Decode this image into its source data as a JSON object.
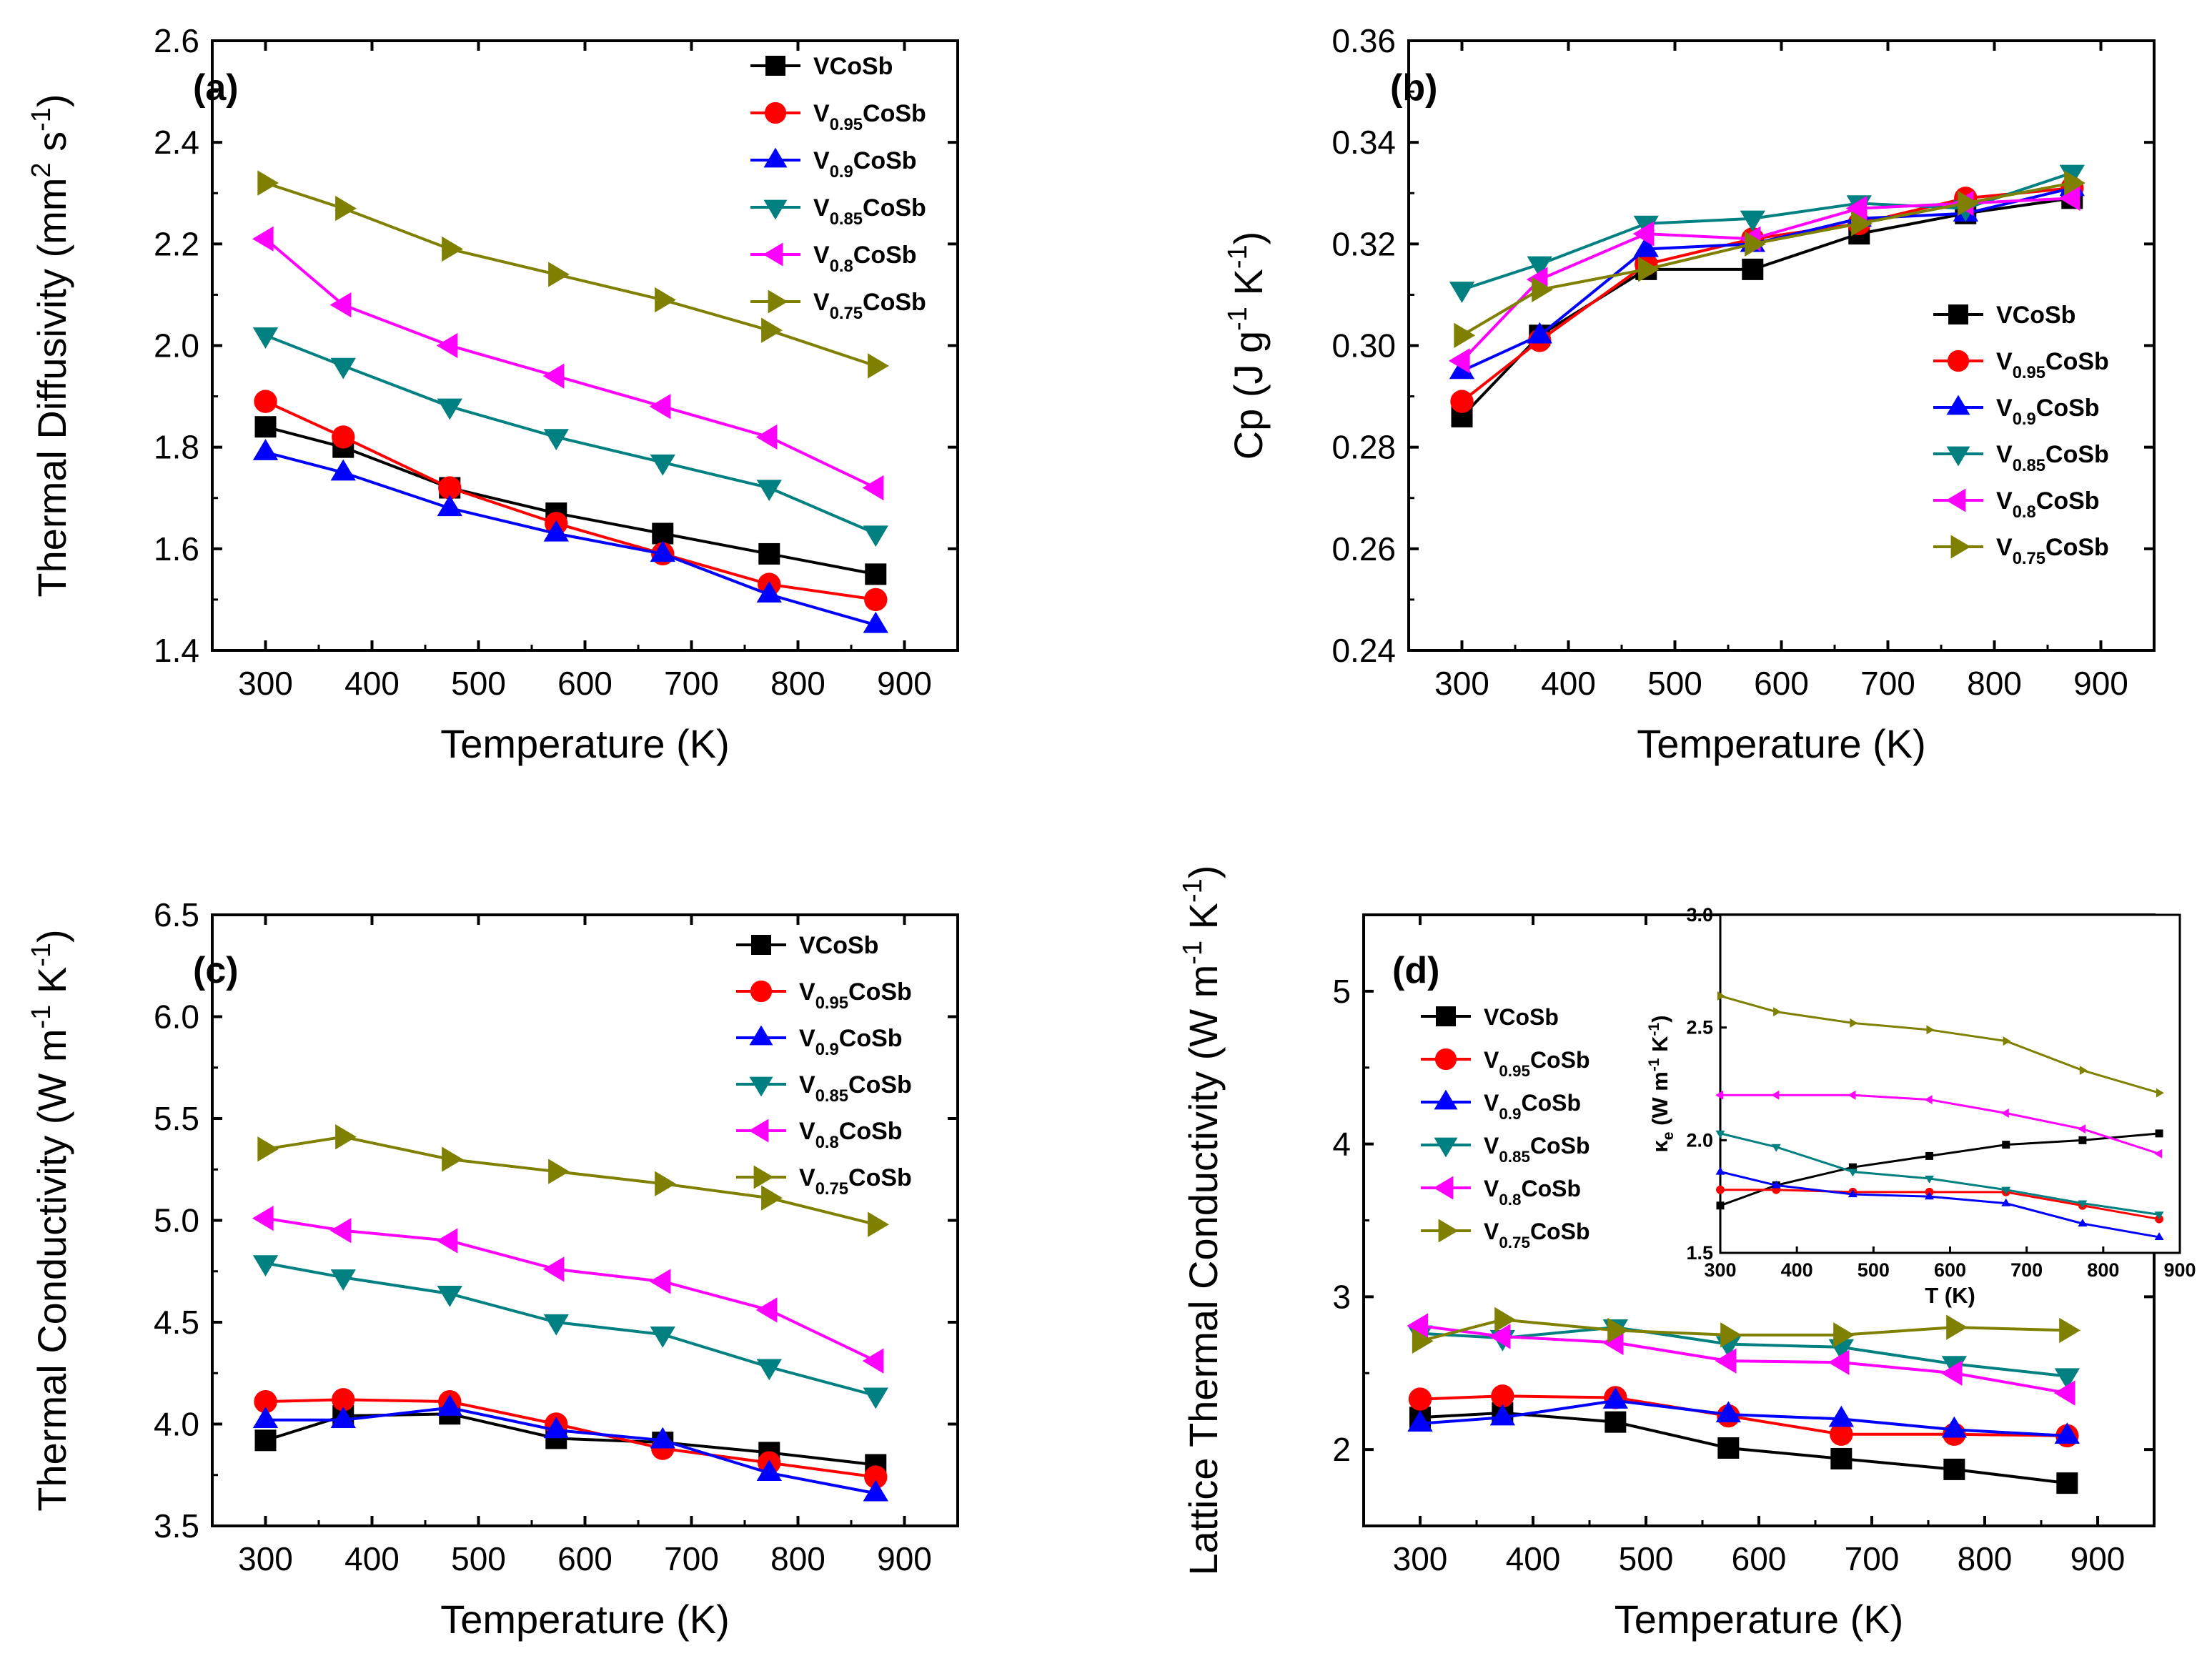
{
  "chart_data": [
    {
      "id": "a",
      "type": "line",
      "panel_label": "(a)",
      "xlabel": "Temperature (K)",
      "ylabel": {
        "base": "Thermal Diffusivity (mm",
        "sup1": "2",
        "mid": " s",
        "sup2": "-1",
        "end": ")"
      },
      "xlim": [
        250,
        950
      ],
      "ylim": [
        1.4,
        2.6
      ],
      "xticks": [
        "300",
        "400",
        "500",
        "600",
        "700",
        "800",
        "900"
      ],
      "yticks": [
        "1.4",
        "1.6",
        "1.8",
        "2.0",
        "2.2",
        "2.4",
        "2.6"
      ],
      "legend_position": "top-right",
      "x": [
        300,
        373,
        473,
        573,
        673,
        773,
        873
      ],
      "series": [
        {
          "name": "VCoSb",
          "values": [
            1.84,
            1.8,
            1.72,
            1.67,
            1.63,
            1.59,
            1.55
          ]
        },
        {
          "name": "V0.95CoSb",
          "values": [
            1.89,
            1.82,
            1.72,
            1.65,
            1.59,
            1.53,
            1.5
          ]
        },
        {
          "name": "V0.9CoSb",
          "values": [
            1.79,
            1.75,
            1.68,
            1.63,
            1.59,
            1.51,
            1.45
          ]
        },
        {
          "name": "V0.85CoSb",
          "values": [
            2.02,
            1.96,
            1.88,
            1.82,
            1.77,
            1.72,
            1.63
          ]
        },
        {
          "name": "V0.8CoSb",
          "values": [
            2.21,
            2.08,
            2.0,
            1.94,
            1.88,
            1.82,
            1.72
          ]
        },
        {
          "name": "V0.75CoSb",
          "values": [
            2.32,
            2.27,
            2.19,
            2.14,
            2.09,
            2.03,
            1.96
          ]
        }
      ]
    },
    {
      "id": "b",
      "type": "line",
      "panel_label": "(b)",
      "xlabel": "Temperature (K)",
      "ylabel": {
        "base": "Cp (J g",
        "sup1": "-1",
        "mid": " K",
        "sup2": "-1",
        "end": ")"
      },
      "xlim": [
        250,
        950
      ],
      "ylim": [
        0.24,
        0.36
      ],
      "xticks": [
        "300",
        "400",
        "500",
        "600",
        "700",
        "800",
        "900"
      ],
      "yticks": [
        "0.24",
        "0.26",
        "0.28",
        "0.30",
        "0.32",
        "0.34",
        "0.36"
      ],
      "legend_position": "center-right",
      "x": [
        300,
        373,
        473,
        573,
        673,
        773,
        873
      ],
      "series": [
        {
          "name": "VCoSb",
          "values": [
            0.286,
            0.302,
            0.315,
            0.315,
            0.322,
            0.326,
            0.329
          ]
        },
        {
          "name": "V0.95CoSb",
          "values": [
            0.289,
            0.301,
            0.316,
            0.321,
            0.324,
            0.329,
            0.331
          ]
        },
        {
          "name": "V0.9CoSb",
          "values": [
            0.295,
            0.302,
            0.319,
            0.32,
            0.325,
            0.326,
            0.331
          ]
        },
        {
          "name": "V0.85CoSb",
          "values": [
            0.311,
            0.316,
            0.324,
            0.325,
            0.328,
            0.327,
            0.334
          ]
        },
        {
          "name": "V0.8CoSb",
          "values": [
            0.297,
            0.313,
            0.322,
            0.321,
            0.327,
            0.328,
            0.329
          ]
        },
        {
          "name": "V0.75CoSb",
          "values": [
            0.302,
            0.311,
            0.315,
            0.32,
            0.324,
            0.328,
            0.332
          ]
        }
      ]
    },
    {
      "id": "c",
      "type": "line",
      "panel_label": "(c)",
      "xlabel": "Temperature (K)",
      "ylabel": {
        "base": "Thermal Conductivity (W m",
        "sup1": "-1",
        "mid": " K",
        "sup2": "-1",
        "end": ")"
      },
      "xlim": [
        250,
        950
      ],
      "ylim": [
        3.5,
        6.5
      ],
      "xticks": [
        "300",
        "400",
        "500",
        "600",
        "700",
        "800",
        "900"
      ],
      "yticks": [
        "3.5",
        "4.0",
        "4.5",
        "5.0",
        "5.5",
        "6.0",
        "6.5"
      ],
      "legend_position": "top-right",
      "x": [
        300,
        373,
        473,
        573,
        673,
        773,
        873
      ],
      "series": [
        {
          "name": "VCoSb",
          "values": [
            3.92,
            4.04,
            4.05,
            3.93,
            3.91,
            3.86,
            3.8
          ]
        },
        {
          "name": "V0.95CoSb",
          "values": [
            4.11,
            4.12,
            4.11,
            4.0,
            3.88,
            3.81,
            3.74
          ]
        },
        {
          "name": "V0.9CoSb",
          "values": [
            4.02,
            4.02,
            4.08,
            3.97,
            3.92,
            3.76,
            3.66
          ]
        },
        {
          "name": "V0.85CoSb",
          "values": [
            4.79,
            4.72,
            4.64,
            4.5,
            4.44,
            4.28,
            4.14
          ]
        },
        {
          "name": "V0.8CoSb",
          "values": [
            5.01,
            4.95,
            4.9,
            4.76,
            4.7,
            4.56,
            4.31
          ]
        },
        {
          "name": "V0.75CoSb",
          "values": [
            5.35,
            5.41,
            5.3,
            5.24,
            5.18,
            5.11,
            4.98
          ]
        }
      ]
    },
    {
      "id": "d",
      "type": "line",
      "panel_label": "(d)",
      "xlabel": "Temperature (K)",
      "ylabel": {
        "base": "Lattice Thermal Conductivity (W m",
        "sup1": "-1",
        "mid": " K",
        "sup2": "-1",
        "end": ")"
      },
      "xlim": [
        250,
        950
      ],
      "ylim": [
        1.5,
        5.5
      ],
      "xticks": [
        "300",
        "400",
        "500",
        "600",
        "700",
        "800",
        "900"
      ],
      "ytick_values": [
        2,
        3,
        4,
        5
      ],
      "yticks": [
        "2",
        "3",
        "4",
        "5"
      ],
      "legend_position": "left",
      "x": [
        300,
        373,
        473,
        573,
        673,
        773,
        873
      ],
      "series": [
        {
          "name": "VCoSb",
          "values": [
            2.21,
            2.24,
            2.18,
            2.01,
            1.94,
            1.87,
            1.78
          ]
        },
        {
          "name": "V0.95CoSb",
          "values": [
            2.33,
            2.35,
            2.34,
            2.22,
            2.1,
            2.1,
            2.09
          ]
        },
        {
          "name": "V0.9CoSb",
          "values": [
            2.17,
            2.21,
            2.32,
            2.23,
            2.2,
            2.13,
            2.09
          ]
        },
        {
          "name": "V0.85CoSb",
          "values": [
            2.76,
            2.73,
            2.8,
            2.69,
            2.67,
            2.56,
            2.48
          ]
        },
        {
          "name": "V0.8CoSb",
          "values": [
            2.81,
            2.74,
            2.7,
            2.58,
            2.57,
            2.5,
            2.37
          ]
        },
        {
          "name": "V0.75CoSb",
          "values": [
            2.71,
            2.85,
            2.78,
            2.75,
            2.75,
            2.8,
            2.78
          ]
        }
      ],
      "inset": {
        "type": "line",
        "xlabel": "T (K)",
        "ylabel": {
          "base": "κ",
          "sub": "e",
          "rest": " (W m",
          "sup1": "-1",
          "mid": " K",
          "sup2": "-1",
          "end": ")"
        },
        "xlim": [
          300,
          900
        ],
        "ylim": [
          1.5,
          3.0
        ],
        "xticks": [
          "300",
          "400",
          "500",
          "600",
          "700",
          "800",
          "900"
        ],
        "yticks": [
          "1.5",
          "2.0",
          "2.5",
          "3.0"
        ],
        "x": [
          300,
          373,
          473,
          573,
          673,
          773,
          873
        ],
        "series": [
          {
            "name": "VCoSb",
            "values": [
              1.71,
              1.8,
              1.88,
              1.93,
              1.98,
              2.0,
              2.03
            ]
          },
          {
            "name": "V0.95CoSb",
            "values": [
              1.78,
              1.78,
              1.77,
              1.77,
              1.77,
              1.71,
              1.65
            ]
          },
          {
            "name": "V0.9CoSb",
            "values": [
              1.86,
              1.8,
              1.76,
              1.75,
              1.72,
              1.63,
              1.57
            ]
          },
          {
            "name": "V0.85CoSb",
            "values": [
              2.03,
              1.97,
              1.86,
              1.83,
              1.78,
              1.72,
              1.67
            ]
          },
          {
            "name": "V0.8CoSb",
            "values": [
              2.2,
              2.2,
              2.2,
              2.18,
              2.12,
              2.05,
              1.94
            ]
          },
          {
            "name": "V0.75CoSb",
            "values": [
              2.64,
              2.57,
              2.52,
              2.49,
              2.44,
              2.31,
              2.21
            ]
          }
        ]
      }
    }
  ],
  "legend_entries": [
    {
      "key": "VCoSb",
      "base": "VCoSb",
      "sub": "",
      "tail": ""
    },
    {
      "key": "V0.95CoSb",
      "base": "V",
      "sub": "0.95",
      "tail": "CoSb"
    },
    {
      "key": "V0.9CoSb",
      "base": "V",
      "sub": "0.9",
      "tail": "CoSb"
    },
    {
      "key": "V0.85CoSb",
      "base": "V",
      "sub": "0.85",
      "tail": "CoSb"
    },
    {
      "key": "V0.8CoSb",
      "base": "V",
      "sub": "0.8",
      "tail": "CoSb"
    },
    {
      "key": "V0.75CoSb",
      "base": "V",
      "sub": "0.75",
      "tail": "CoSb"
    }
  ],
  "styles": [
    {
      "key": "VCoSb",
      "color": "#000000",
      "marker": "square"
    },
    {
      "key": "V0.95CoSb",
      "color": "#ff0000",
      "marker": "circle"
    },
    {
      "key": "V0.9CoSb",
      "color": "#0000ff",
      "marker": "triangle-up"
    },
    {
      "key": "V0.85CoSb",
      "color": "#008080",
      "marker": "triangle-down"
    },
    {
      "key": "V0.8CoSb",
      "color": "#ff00ff",
      "marker": "triangle-left"
    },
    {
      "key": "V0.75CoSb",
      "color": "#808000",
      "marker": "triangle-right"
    }
  ]
}
